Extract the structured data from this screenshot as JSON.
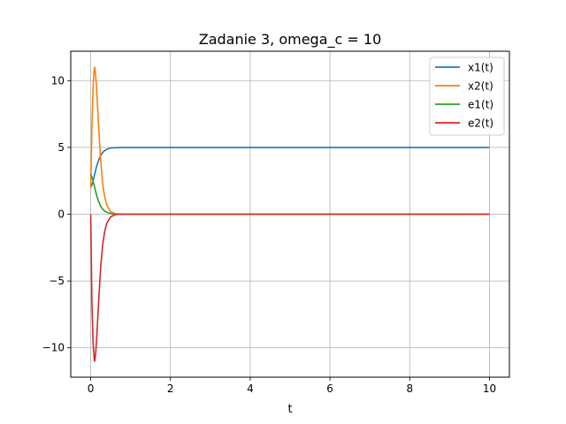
{
  "chart_data": {
    "type": "line",
    "title": "Zadanie 3, omega_c = 10",
    "xlabel": "t",
    "ylabel": "",
    "xlim": [
      -0.5,
      10.5
    ],
    "ylim": [
      -12.2,
      12.2
    ],
    "xticks": [
      0,
      2,
      4,
      6,
      8,
      10
    ],
    "xtick_labels": [
      "0",
      "2",
      "4",
      "6",
      "8",
      "10"
    ],
    "yticks": [
      -10,
      -5,
      0,
      5,
      10
    ],
    "ytick_labels": [
      "−10",
      "−5",
      "0",
      "5",
      "10"
    ],
    "grid": true,
    "legend_position": "top-right",
    "series": [
      {
        "name": "x1(t)",
        "color": "#1f77b4",
        "x": [
          0,
          0.05,
          0.1,
          0.15,
          0.2,
          0.25,
          0.3,
          0.35,
          0.4,
          0.45,
          0.5,
          0.6,
          0.7,
          0.8,
          1.0,
          1.5,
          2,
          4,
          6,
          8,
          10
        ],
        "y": [
          2.0,
          2.35,
          3.0,
          3.6,
          4.05,
          4.4,
          4.62,
          4.76,
          4.85,
          4.91,
          4.95,
          4.98,
          4.99,
          5.0,
          5.0,
          5.0,
          5.0,
          5.0,
          5.0,
          5.0,
          5.0
        ]
      },
      {
        "name": "x2(t)",
        "color": "#ff7f0e",
        "x": [
          0,
          0.03,
          0.06,
          0.09,
          0.1,
          0.12,
          0.15,
          0.2,
          0.25,
          0.3,
          0.35,
          0.4,
          0.5,
          0.6,
          0.7,
          0.8,
          1.0,
          1.5,
          2,
          4,
          6,
          8,
          10
        ],
        "y": [
          2.0,
          6.5,
          9.6,
          10.9,
          11.0,
          10.6,
          9.3,
          6.5,
          4.0,
          2.3,
          1.3,
          0.7,
          0.2,
          0.05,
          0.0,
          0.0,
          0.0,
          0.0,
          0.0,
          0.0,
          0.0,
          0.0,
          0.0
        ]
      },
      {
        "name": "e1(t)",
        "color": "#2ca02c",
        "x": [
          0,
          0.05,
          0.1,
          0.15,
          0.2,
          0.25,
          0.3,
          0.35,
          0.4,
          0.5,
          0.6,
          0.7,
          0.8,
          1.0,
          1.5,
          2,
          4,
          6,
          8,
          10
        ],
        "y": [
          3.0,
          2.6,
          2.0,
          1.4,
          0.95,
          0.6,
          0.38,
          0.24,
          0.15,
          0.06,
          0.02,
          0.01,
          0.0,
          0.0,
          0.0,
          0.0,
          0.0,
          0.0,
          0.0,
          0.0
        ]
      },
      {
        "name": "e2(t)",
        "color": "#d62728",
        "x": [
          0,
          0.03,
          0.06,
          0.09,
          0.1,
          0.12,
          0.15,
          0.2,
          0.25,
          0.3,
          0.35,
          0.4,
          0.5,
          0.6,
          0.7,
          0.8,
          1.0,
          1.5,
          2,
          4,
          6,
          8,
          10
        ],
        "y": [
          0.0,
          -6.5,
          -9.6,
          -10.9,
          -11.0,
          -10.6,
          -9.3,
          -6.5,
          -4.0,
          -2.3,
          -1.3,
          -0.7,
          -0.2,
          -0.05,
          0.0,
          0.0,
          0.0,
          0.0,
          0.0,
          0.0,
          0.0,
          0.0,
          0.0
        ]
      }
    ]
  }
}
